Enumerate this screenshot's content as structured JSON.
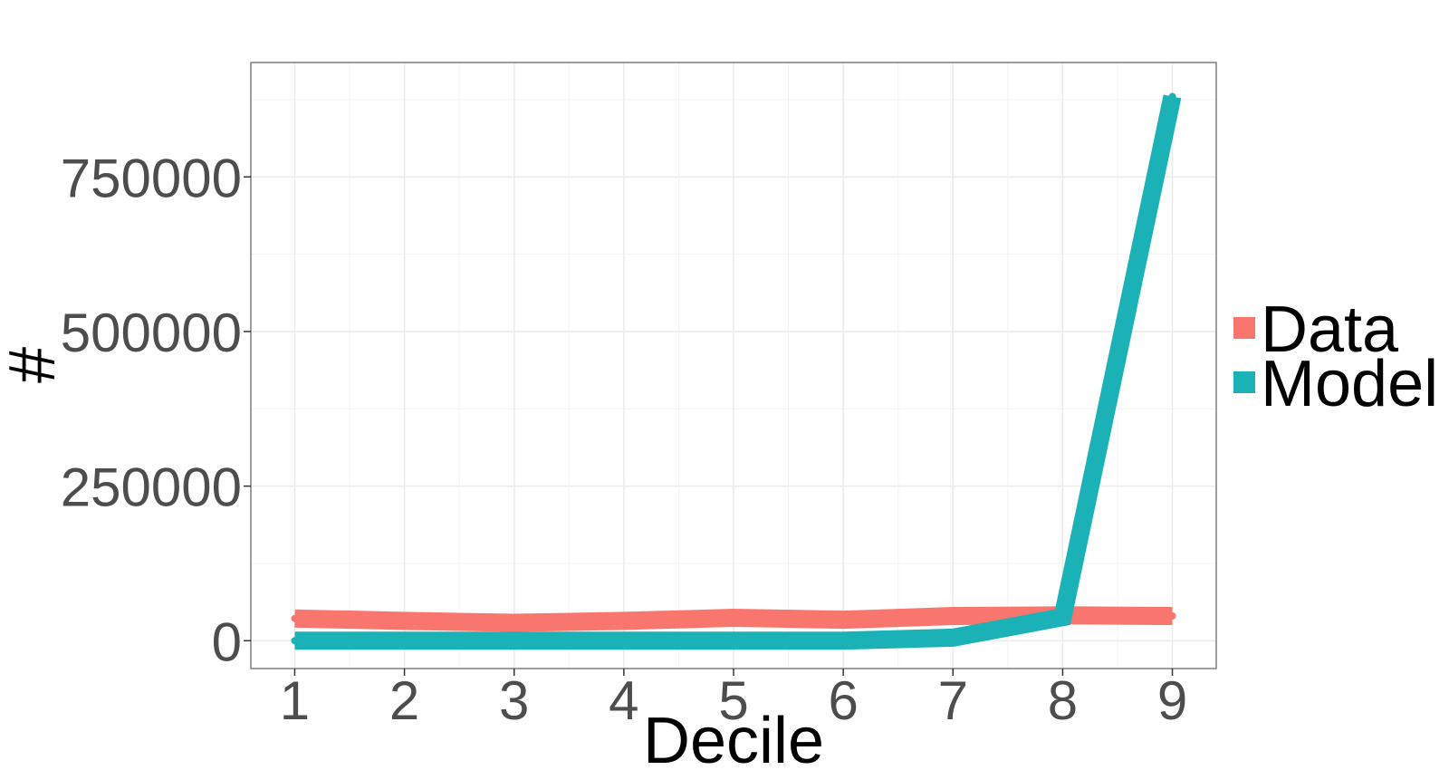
{
  "chart_data": {
    "type": "line",
    "title": "",
    "xlabel": "Decile",
    "ylabel": "#",
    "x": [
      1,
      2,
      3,
      4,
      5,
      6,
      7,
      8,
      9
    ],
    "xlim": [
      0.6,
      9.4
    ],
    "ylim": [
      -45000,
      935000
    ],
    "yticks": [
      0,
      250000,
      500000,
      750000
    ],
    "ytick_labels": [
      "0",
      "250000",
      "500000",
      "750000"
    ],
    "xtick_labels": [
      "1",
      "2",
      "3",
      "4",
      "5",
      "6",
      "7",
      "8",
      "9"
    ],
    "grid": true,
    "legend_position": "right",
    "series": [
      {
        "name": "Data",
        "color": "#F8766D",
        "values": [
          36000,
          32000,
          29000,
          32000,
          37000,
          34000,
          40000,
          41000,
          40000
        ]
      },
      {
        "name": "Model",
        "color": "#1AB2B7",
        "values": [
          0,
          0,
          0,
          0,
          0,
          0,
          5000,
          38000,
          880000
        ]
      }
    ]
  }
}
